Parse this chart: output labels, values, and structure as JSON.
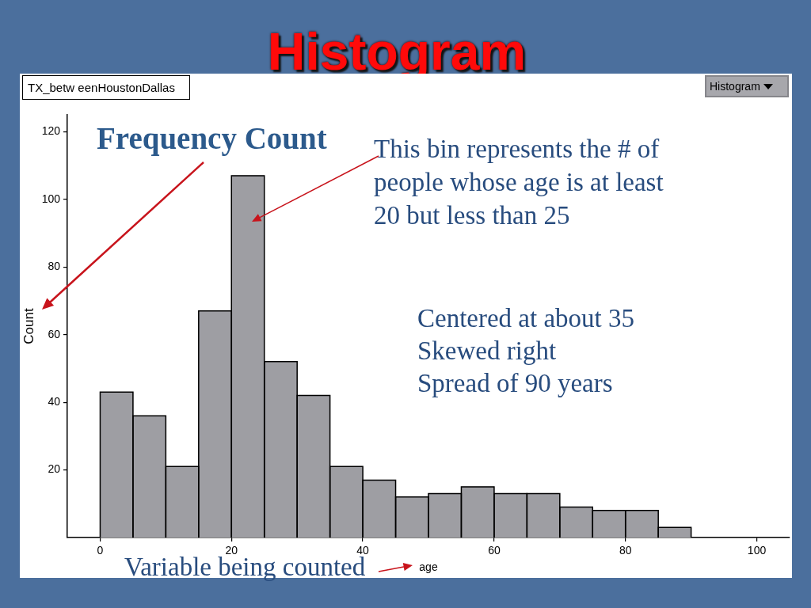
{
  "chart_data": {
    "type": "histogram",
    "title": "Histogram",
    "xlabel": "age",
    "ylabel": "Count",
    "bins": [
      0,
      5,
      10,
      15,
      20,
      25,
      30,
      35,
      40,
      45,
      50,
      55,
      60,
      65,
      70,
      75,
      80,
      85,
      90
    ],
    "values": [
      43,
      36,
      21,
      67,
      107,
      52,
      42,
      21,
      17,
      12,
      13,
      15,
      13,
      13,
      9,
      8,
      8,
      3
    ],
    "color": "#9e9ea3",
    "xlim": [
      -5,
      105
    ],
    "xticks": [
      0,
      20,
      40,
      60,
      80,
      100
    ],
    "ylim": [
      0,
      125
    ],
    "yticks": [
      20,
      40,
      60,
      80,
      100,
      120
    ],
    "annotations": [
      "TX_betw eenHoustonDallas",
      "Histogram",
      "Frequency Count",
      "This bin represents the # of people whose age is at least 20 but less than 25",
      "Centered at about 35",
      "Skewed right",
      "Spread of 90 years",
      "Variable being counted"
    ]
  }
}
